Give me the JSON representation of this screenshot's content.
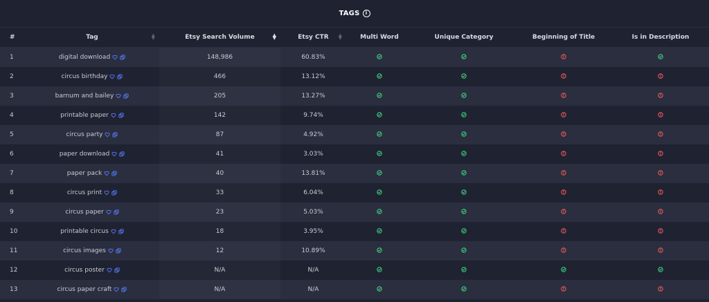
{
  "title": "TAGS",
  "columns": [
    "#",
    "Tag",
    "Etsy Search Volume",
    "Etsy CTR",
    "Multi Word",
    "Unique Category",
    "Beginning of Title",
    "Is in Description"
  ],
  "colors": {
    "ok": "#3fd17f",
    "bad": "#ef5a5a",
    "link": "#5b7cff"
  },
  "rows": [
    {
      "n": "1",
      "tag": "digital download",
      "volume": "148,986",
      "ctr": "60.83%",
      "multi": "ok",
      "unique": "ok",
      "beginning": "bad",
      "description": "ok"
    },
    {
      "n": "2",
      "tag": "circus birthday",
      "volume": "466",
      "ctr": "13.12%",
      "multi": "ok",
      "unique": "ok",
      "beginning": "bad",
      "description": "bad"
    },
    {
      "n": "3",
      "tag": "barnum and bailey",
      "volume": "205",
      "ctr": "13.27%",
      "multi": "ok",
      "unique": "ok",
      "beginning": "bad",
      "description": "bad"
    },
    {
      "n": "4",
      "tag": "printable paper",
      "volume": "142",
      "ctr": "9.74%",
      "multi": "ok",
      "unique": "ok",
      "beginning": "bad",
      "description": "bad"
    },
    {
      "n": "5",
      "tag": "circus party",
      "volume": "87",
      "ctr": "4.92%",
      "multi": "ok",
      "unique": "ok",
      "beginning": "bad",
      "description": "bad"
    },
    {
      "n": "6",
      "tag": "paper download",
      "volume": "41",
      "ctr": "3.03%",
      "multi": "ok",
      "unique": "ok",
      "beginning": "bad",
      "description": "bad"
    },
    {
      "n": "7",
      "tag": "paper pack",
      "volume": "40",
      "ctr": "13.81%",
      "multi": "ok",
      "unique": "ok",
      "beginning": "bad",
      "description": "bad"
    },
    {
      "n": "8",
      "tag": "circus print",
      "volume": "33",
      "ctr": "6.04%",
      "multi": "ok",
      "unique": "ok",
      "beginning": "bad",
      "description": "bad"
    },
    {
      "n": "9",
      "tag": "circus paper",
      "volume": "23",
      "ctr": "5.03%",
      "multi": "ok",
      "unique": "ok",
      "beginning": "bad",
      "description": "bad"
    },
    {
      "n": "10",
      "tag": "printable circus",
      "volume": "18",
      "ctr": "3.95%",
      "multi": "ok",
      "unique": "ok",
      "beginning": "bad",
      "description": "bad"
    },
    {
      "n": "11",
      "tag": "circus images",
      "volume": "12",
      "ctr": "10.89%",
      "multi": "ok",
      "unique": "ok",
      "beginning": "bad",
      "description": "bad"
    },
    {
      "n": "12",
      "tag": "circus poster",
      "volume": "N/A",
      "ctr": "N/A",
      "multi": "ok",
      "unique": "ok",
      "beginning": "ok",
      "description": "ok"
    },
    {
      "n": "13",
      "tag": "circus paper craft",
      "volume": "N/A",
      "ctr": "N/A",
      "multi": "ok",
      "unique": "ok",
      "beginning": "bad",
      "description": "bad"
    }
  ]
}
